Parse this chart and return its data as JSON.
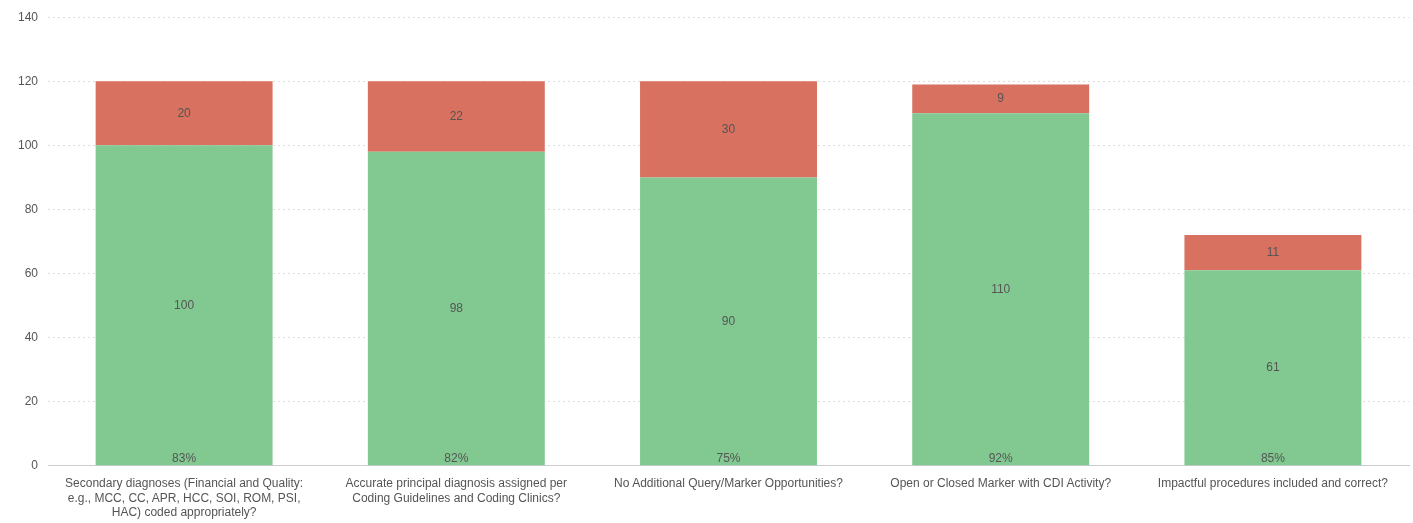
{
  "chart_data": {
    "type": "bar",
    "stacked": true,
    "categories": [
      "Secondary diagnoses (Financial and Quality: e.g., MCC, CC, APR, HCC, SOI, ROM, PSI, HAC) coded appropriately?",
      "Accurate principal diagnosis assigned per Coding Guidelines and Coding Clinics?",
      "No Additional Query/Marker Opportunities?",
      "Open or Closed Marker with CDI Activity?",
      "Impactful procedures included and correct?"
    ],
    "series": [
      {
        "color": "#82c891",
        "values": [
          100,
          98,
          90,
          110,
          61
        ]
      },
      {
        "color": "#d8715f",
        "values": [
          20,
          22,
          30,
          9,
          11
        ]
      }
    ],
    "ylim": [
      0,
      140
    ],
    "yticks": [
      0,
      20,
      40,
      60,
      80,
      100,
      120,
      140
    ],
    "grid": "y",
    "data_labels": true,
    "legend": false,
    "annotations": [
      {
        "text": "83%",
        "x": "Secondary diagnoses (Financial and Quality: e.g., MCC, CC, APR, HCC, SOI, ROM, PSI, HAC) coded appropriately?",
        "y": 0
      },
      {
        "text": "82%",
        "x": "Accurate principal diagnosis assigned per Coding Guidelines and Coding Clinics?",
        "y": 0
      },
      {
        "text": "75%",
        "x": "No Additional Query/Marker Opportunities?",
        "y": 0
      },
      {
        "text": "92%",
        "x": "Open or Closed Marker with CDI Activity?",
        "y": 0
      },
      {
        "text": "85%",
        "x": "Impactful procedures included and correct?",
        "y": 0
      }
    ]
  }
}
